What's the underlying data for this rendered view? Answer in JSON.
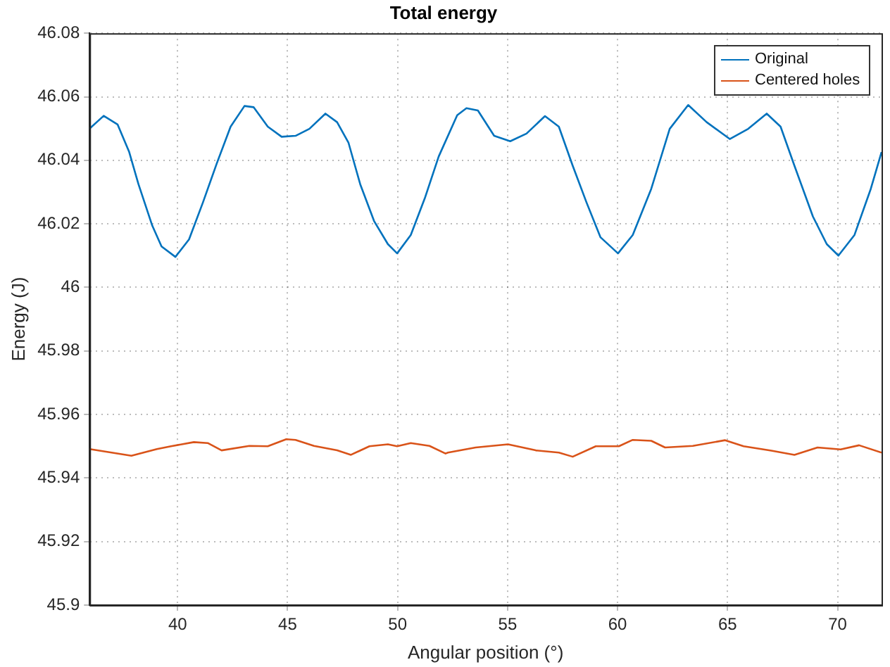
{
  "chart_data": {
    "type": "line",
    "title": "Total energy",
    "xlabel": "Angular position (°)",
    "ylabel": "Energy (J)",
    "xlim": [
      36,
      72
    ],
    "xticks": [
      40,
      45,
      50,
      55,
      60,
      65,
      70
    ],
    "ylim": [
      45.9,
      46.08
    ],
    "yticks": [
      45.9,
      45.92,
      45.94,
      45.96,
      45.98,
      46,
      46.02,
      46.04,
      46.06,
      46.08
    ],
    "grid": true,
    "legend": "top right",
    "marker": "none",
    "line_style": "solid",
    "series": [
      {
        "name": "Original",
        "color": "#0072bd",
        "x": [
          36,
          36.64,
          37.27,
          37.8,
          38.22,
          38.85,
          39.27,
          39.9,
          40.52,
          41.15,
          41.78,
          42.41,
          43.04,
          43.46,
          44.1,
          44.73,
          45.36,
          45.99,
          46.72,
          47.25,
          47.77,
          48.3,
          48.93,
          49.56,
          49.98,
          50.6,
          51.24,
          51.87,
          52.71,
          53.13,
          53.65,
          54.39,
          55.12,
          55.86,
          56.7,
          57.33,
          57.96,
          58.59,
          59.22,
          60.02,
          60.69,
          61.53,
          62.37,
          63.21,
          64.05,
          65.1,
          65.94,
          66.78,
          67.41,
          68.04,
          68.88,
          69.51,
          70.04,
          70.77,
          71.51,
          72
        ],
        "values": [
          46.05,
          46.054,
          46.0513,
          46.0426,
          46.0325,
          46.0194,
          46.0129,
          46.0096,
          46.0151,
          46.0267,
          46.039,
          46.0506,
          46.0571,
          46.0567,
          46.0506,
          46.0474,
          46.0477,
          46.0499,
          46.0547,
          46.052,
          46.0455,
          46.0325,
          46.0209,
          46.0136,
          46.0107,
          46.0165,
          46.0281,
          46.0412,
          46.0542,
          46.0564,
          46.0557,
          46.0477,
          46.046,
          46.0484,
          46.0539,
          46.0506,
          46.0383,
          46.0267,
          46.0158,
          46.0107,
          46.0165,
          46.031,
          46.0499,
          46.0574,
          46.052,
          46.0467,
          46.0499,
          46.0547,
          46.0506,
          46.0383,
          46.0223,
          46.0136,
          46.01,
          46.0165,
          46.031,
          46.0426
        ]
      },
      {
        "name": "Centered holes",
        "color": "#d95319",
        "x": [
          36,
          37.9,
          39.06,
          39.7,
          40.74,
          41.37,
          42,
          43.26,
          44.1,
          44.94,
          45.36,
          46.2,
          47.25,
          47.88,
          48.72,
          49.56,
          49.98,
          50.6,
          51.45,
          52.18,
          52.29,
          53.55,
          55.02,
          56.28,
          57.33,
          57.96,
          59.01,
          60.06,
          60.69,
          61.53,
          62.16,
          63.42,
          64.89,
          65.73,
          66.99,
          68.04,
          69.09,
          70.14,
          70.98,
          72
        ],
        "values": [
          45.9491,
          45.947,
          45.9491,
          45.95,
          45.9513,
          45.951,
          45.9487,
          45.9501,
          45.95,
          45.9522,
          45.952,
          45.9501,
          45.9487,
          45.9473,
          45.95,
          45.9506,
          45.95,
          45.951,
          45.9501,
          45.9477,
          45.948,
          45.9496,
          45.9506,
          45.9487,
          45.948,
          45.9467,
          45.95,
          45.95,
          45.952,
          45.9517,
          45.9496,
          45.9501,
          45.9519,
          45.95,
          45.9486,
          45.9473,
          45.9496,
          45.949,
          45.9503,
          45.948
        ]
      }
    ]
  }
}
